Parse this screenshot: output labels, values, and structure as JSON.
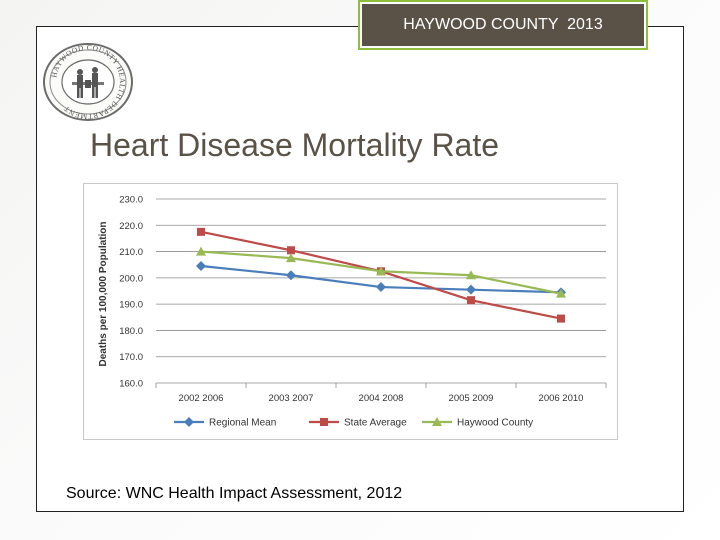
{
  "header": {
    "county_label": "HAYWOOD COUNTY  2013"
  },
  "seal": {
    "text": "HAYWOOD COUNTY HEALTH DEPARTMENT"
  },
  "slide": {
    "title": "Heart Disease Mortality Rate",
    "source": "Source: WNC Health Impact Assessment, 2012"
  },
  "colors": {
    "regional": "#4a7ebb",
    "state": "#be4b48",
    "haywood": "#98b954",
    "accent": "#8fbf3a",
    "header_bg": "#5a5247"
  },
  "chart_data": {
    "type": "line",
    "title": "",
    "xlabel": "",
    "ylabel": "Deaths per 100,000 Population",
    "categories": [
      "2002 2006",
      "2003 2007",
      "2004 2008",
      "2005 2009",
      "2006 2010"
    ],
    "ylim": [
      160,
      230
    ],
    "yticks": [
      "160.0",
      "170.0",
      "180.0",
      "190.0",
      "200.0",
      "210.0",
      "220.0",
      "230.0"
    ],
    "grid": true,
    "legend_position": "bottom",
    "series": [
      {
        "name": "Regional Mean",
        "marker": "diamond",
        "values": [
          204.5,
          201.0,
          196.5,
          195.5,
          194.5
        ]
      },
      {
        "name": "State Average",
        "marker": "square",
        "values": [
          217.5,
          210.5,
          202.5,
          191.5,
          184.5
        ]
      },
      {
        "name": "Haywood County",
        "marker": "triangle",
        "values": [
          210.0,
          207.5,
          202.5,
          201.0,
          194.0
        ]
      }
    ]
  }
}
